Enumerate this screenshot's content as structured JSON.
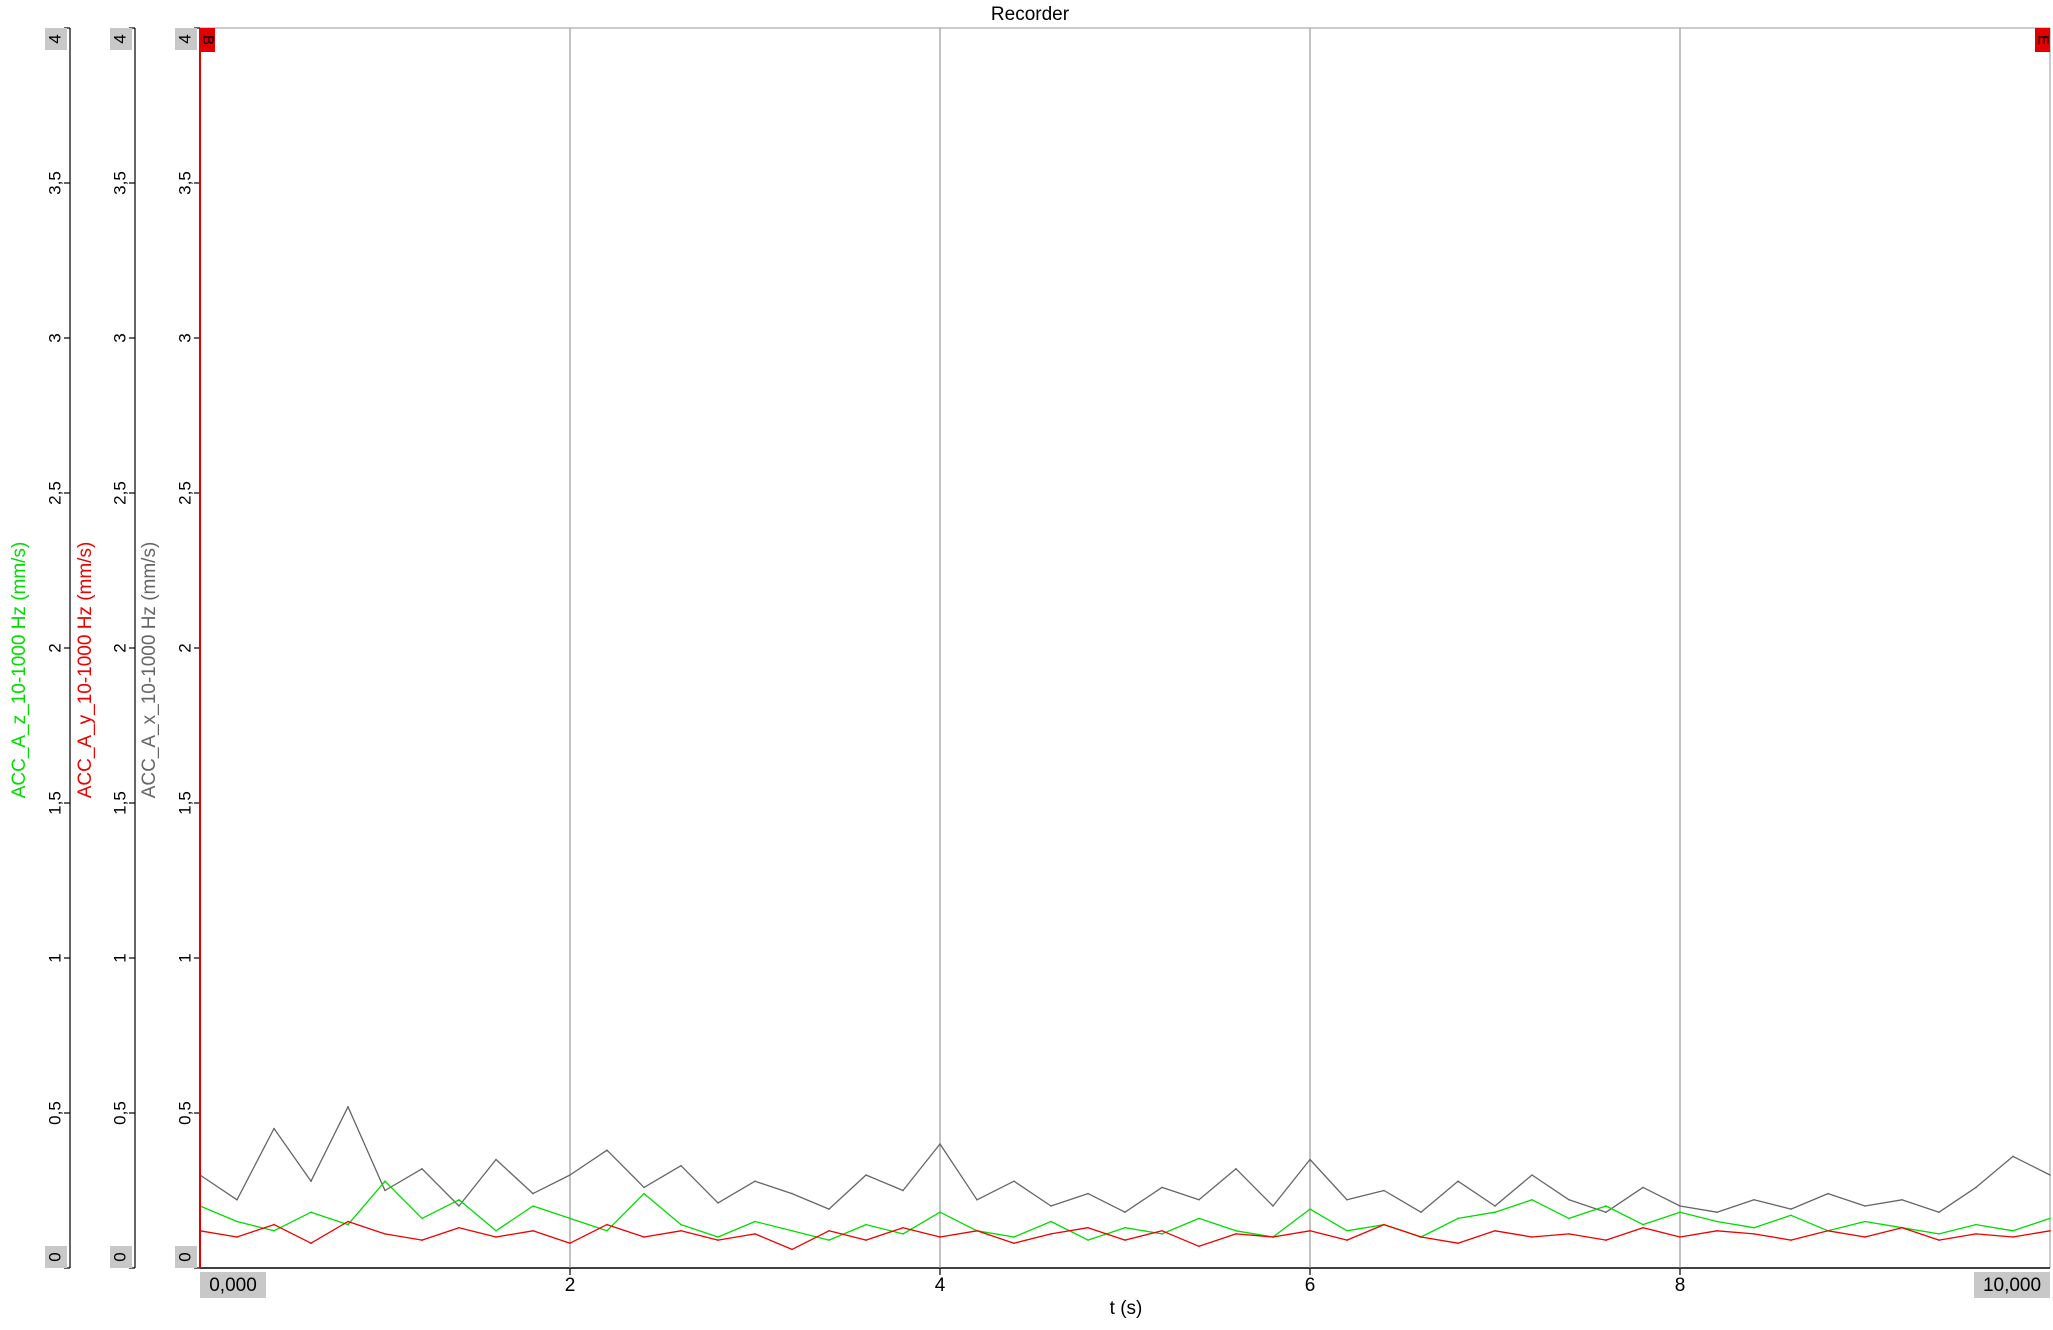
{
  "chart_data": {
    "type": "line",
    "title": "Recorder",
    "xlabel": "t (s)",
    "xlim": [
      0,
      10
    ],
    "ylim": [
      0,
      4
    ],
    "x_ticks": [
      "2",
      "4",
      "6",
      "8"
    ],
    "x_start_label": "0,000",
    "x_end_label": "10,000",
    "cursor_left_label": "B",
    "cursor_right_label": "E",
    "y_axes": [
      {
        "label": "ACC_A_z_10-1000 Hz (mm/s)",
        "color": "#00dd00",
        "ticks": [
          "0",
          "0,5",
          "1",
          "1,5",
          "2",
          "2,5",
          "3",
          "3,5",
          "4"
        ]
      },
      {
        "label": "ACC_A_y_10-1000 Hz (mm/s)",
        "color": "#ee0000",
        "ticks": [
          "0",
          "0,5",
          "1",
          "1,5",
          "2",
          "2,5",
          "3",
          "3,5",
          "4"
        ]
      },
      {
        "label": "ACC_A_x_10-1000 Hz (mm/s)",
        "color": "#666666",
        "ticks": [
          "0",
          "0,5",
          "1",
          "1,5",
          "2",
          "2,5",
          "3",
          "3,5",
          "4"
        ]
      }
    ],
    "series": [
      {
        "name": "ACC_A_x_10-1000 Hz (mm/s)",
        "color": "#666666",
        "x": [
          0,
          0.2,
          0.4,
          0.6,
          0.8,
          1.0,
          1.2,
          1.4,
          1.6,
          1.8,
          2.0,
          2.2,
          2.4,
          2.6,
          2.8,
          3.0,
          3.2,
          3.4,
          3.6,
          3.8,
          4.0,
          4.2,
          4.4,
          4.6,
          4.8,
          5.0,
          5.2,
          5.4,
          5.6,
          5.8,
          6.0,
          6.2,
          6.4,
          6.6,
          6.8,
          7.0,
          7.2,
          7.4,
          7.6,
          7.8,
          8.0,
          8.2,
          8.4,
          8.6,
          8.8,
          9.0,
          9.2,
          9.4,
          9.6,
          9.8,
          10.0
        ],
        "values": [
          0.3,
          0.22,
          0.45,
          0.28,
          0.52,
          0.25,
          0.32,
          0.2,
          0.35,
          0.24,
          0.3,
          0.38,
          0.26,
          0.33,
          0.21,
          0.28,
          0.24,
          0.19,
          0.3,
          0.25,
          0.4,
          0.22,
          0.28,
          0.2,
          0.24,
          0.18,
          0.26,
          0.22,
          0.32,
          0.2,
          0.35,
          0.22,
          0.25,
          0.18,
          0.28,
          0.2,
          0.3,
          0.22,
          0.18,
          0.26,
          0.2,
          0.18,
          0.22,
          0.19,
          0.24,
          0.2,
          0.22,
          0.18,
          0.26,
          0.36,
          0.3
        ]
      },
      {
        "name": "ACC_A_z_10-1000 Hz (mm/s)",
        "color": "#00dd00",
        "x": [
          0,
          0.2,
          0.4,
          0.6,
          0.8,
          1.0,
          1.2,
          1.4,
          1.6,
          1.8,
          2.0,
          2.2,
          2.4,
          2.6,
          2.8,
          3.0,
          3.2,
          3.4,
          3.6,
          3.8,
          4.0,
          4.2,
          4.4,
          4.6,
          4.8,
          5.0,
          5.2,
          5.4,
          5.6,
          5.8,
          6.0,
          6.2,
          6.4,
          6.6,
          6.8,
          7.0,
          7.2,
          7.4,
          7.6,
          7.8,
          8.0,
          8.2,
          8.4,
          8.6,
          8.8,
          9.0,
          9.2,
          9.4,
          9.6,
          9.8,
          10.0
        ],
        "values": [
          0.2,
          0.15,
          0.12,
          0.18,
          0.14,
          0.28,
          0.16,
          0.22,
          0.12,
          0.2,
          0.16,
          0.12,
          0.24,
          0.14,
          0.1,
          0.15,
          0.12,
          0.09,
          0.14,
          0.11,
          0.18,
          0.12,
          0.1,
          0.15,
          0.09,
          0.13,
          0.11,
          0.16,
          0.12,
          0.1,
          0.19,
          0.12,
          0.14,
          0.1,
          0.16,
          0.18,
          0.22,
          0.16,
          0.2,
          0.14,
          0.18,
          0.15,
          0.13,
          0.17,
          0.12,
          0.15,
          0.13,
          0.11,
          0.14,
          0.12,
          0.16
        ]
      },
      {
        "name": "ACC_A_y_10-1000 Hz (mm/s)",
        "color": "#ee0000",
        "x": [
          0,
          0.2,
          0.4,
          0.6,
          0.8,
          1.0,
          1.2,
          1.4,
          1.6,
          1.8,
          2.0,
          2.2,
          2.4,
          2.6,
          2.8,
          3.0,
          3.2,
          3.4,
          3.6,
          3.8,
          4.0,
          4.2,
          4.4,
          4.6,
          4.8,
          5.0,
          5.2,
          5.4,
          5.6,
          5.8,
          6.0,
          6.2,
          6.4,
          6.6,
          6.8,
          7.0,
          7.2,
          7.4,
          7.6,
          7.8,
          8.0,
          8.2,
          8.4,
          8.6,
          8.8,
          9.0,
          9.2,
          9.4,
          9.6,
          9.8,
          10.0
        ],
        "values": [
          0.12,
          0.1,
          0.14,
          0.08,
          0.15,
          0.11,
          0.09,
          0.13,
          0.1,
          0.12,
          0.08,
          0.14,
          0.1,
          0.12,
          0.09,
          0.11,
          0.06,
          0.12,
          0.09,
          0.13,
          0.1,
          0.12,
          0.08,
          0.11,
          0.13,
          0.09,
          0.12,
          0.07,
          0.11,
          0.1,
          0.12,
          0.09,
          0.14,
          0.1,
          0.08,
          0.12,
          0.1,
          0.11,
          0.09,
          0.13,
          0.1,
          0.12,
          0.11,
          0.09,
          0.12,
          0.1,
          0.13,
          0.09,
          0.11,
          0.1,
          0.12
        ]
      }
    ]
  }
}
